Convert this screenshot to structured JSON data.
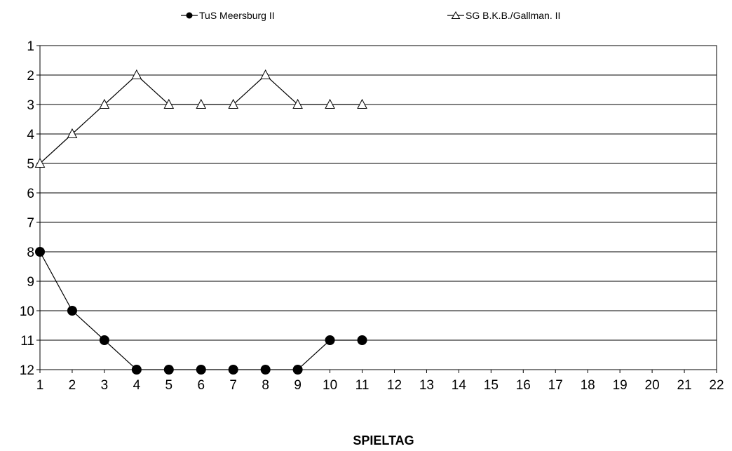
{
  "chart_data": {
    "type": "line",
    "title": "",
    "xlabel": "SPIELTAG",
    "ylabel": "",
    "x": [
      1,
      2,
      3,
      4,
      5,
      6,
      7,
      8,
      9,
      10,
      11,
      12,
      13,
      14,
      15,
      16,
      17,
      18,
      19,
      20,
      21,
      22
    ],
    "xlim": [
      1,
      22
    ],
    "ylim": [
      1,
      12
    ],
    "y_inverted": true,
    "y_ticks": [
      1,
      2,
      3,
      4,
      5,
      6,
      7,
      8,
      9,
      10,
      11,
      12
    ],
    "grid": "horizontal",
    "legend_position": "top",
    "series": [
      {
        "name": "TuS Meersburg II",
        "marker": "filled-circle",
        "color": "#000000",
        "x": [
          1,
          2,
          3,
          4,
          5,
          6,
          7,
          8,
          9,
          10,
          11
        ],
        "values": [
          8,
          10,
          11,
          12,
          12,
          12,
          12,
          12,
          12,
          11,
          11
        ]
      },
      {
        "name": "SG B.K.B./Gallman. II",
        "marker": "open-triangle",
        "color": "#000000",
        "x": [
          1,
          2,
          3,
          4,
          5,
          6,
          7,
          8,
          9,
          10,
          11
        ],
        "values": [
          5,
          4,
          3,
          2,
          3,
          3,
          3,
          2,
          3,
          3,
          3
        ]
      }
    ]
  }
}
